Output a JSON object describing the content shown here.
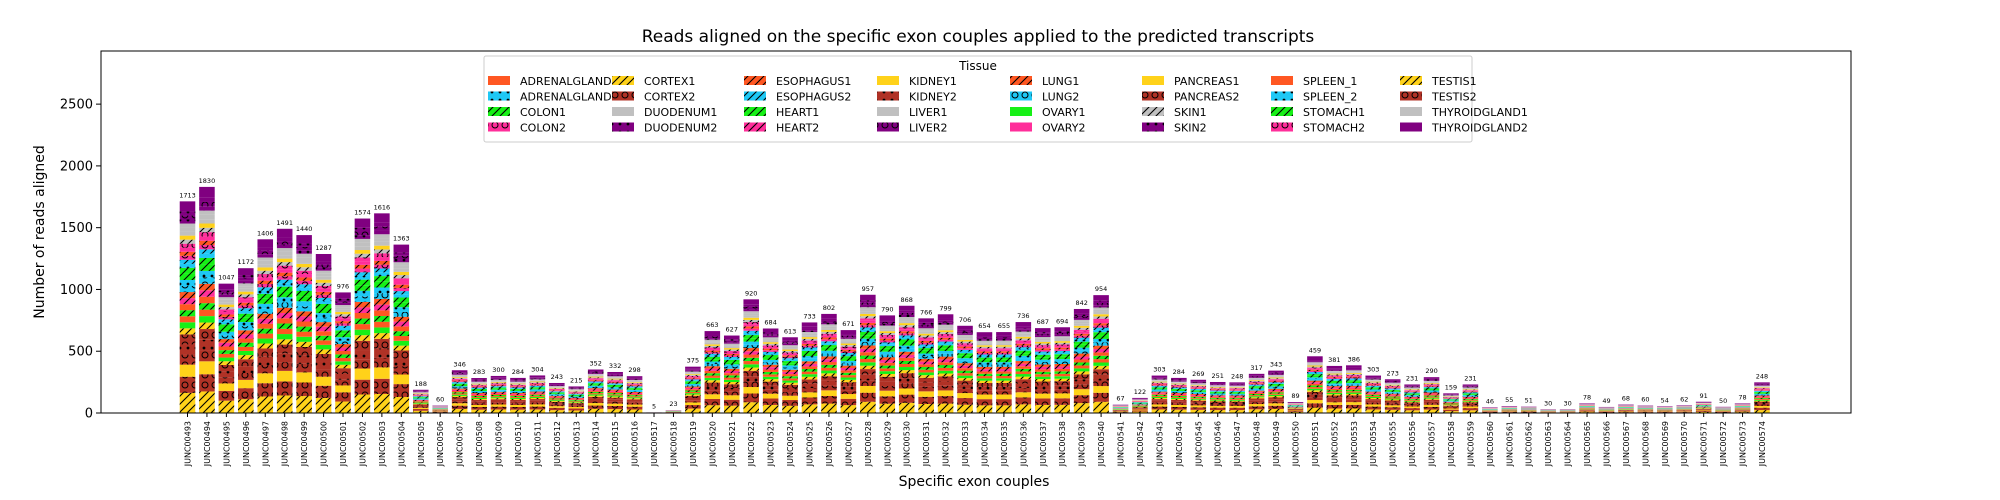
{
  "chart_data": {
    "type": "bar",
    "stacked": true,
    "title": "Reads aligned on the specific exon couples applied to the predicted transcripts",
    "xlabel": "Specific exon couples",
    "ylabel": "Number of reads aligned",
    "ylim": [
      0,
      2930
    ],
    "yticks": [
      0,
      500,
      1000,
      1500,
      2000,
      2500
    ],
    "grid": false,
    "legend": {
      "title": "Tissue",
      "position": "top-center",
      "ncol": 8
    },
    "categories": [
      "JUNC00493",
      "JUNC00494",
      "JUNC00495",
      "JUNC00496",
      "JUNC00497",
      "JUNC00498",
      "JUNC00499",
      "JUNC00500",
      "JUNC00501",
      "JUNC00502",
      "JUNC00503",
      "JUNC00504",
      "JUNC00505",
      "JUNC00506",
      "JUNC00507",
      "JUNC00508",
      "JUNC00509",
      "JUNC00510",
      "JUNC00511",
      "JUNC00512",
      "JUNC00513",
      "JUNC00514",
      "JUNC00515",
      "JUNC00516",
      "JUNC00517",
      "JUNC00518",
      "JUNC00519",
      "JUNC00520",
      "JUNC00521",
      "JUNC00522",
      "JUNC00523",
      "JUNC00524",
      "JUNC00525",
      "JUNC00526",
      "JUNC00527",
      "JUNC00528",
      "JUNC00529",
      "JUNC00530",
      "JUNC00531",
      "JUNC00532",
      "JUNC00533",
      "JUNC00534",
      "JUNC00535",
      "JUNC00536",
      "JUNC00537",
      "JUNC00538",
      "JUNC00539",
      "JUNC00540",
      "JUNC00541",
      "JUNC00542",
      "JUNC00543",
      "JUNC00544",
      "JUNC00545",
      "JUNC00546",
      "JUNC00547",
      "JUNC00548",
      "JUNC00549",
      "JUNC00550",
      "JUNC00551",
      "JUNC00552",
      "JUNC00553",
      "JUNC00554",
      "JUNC00555",
      "JUNC00556",
      "JUNC00557",
      "JUNC00558",
      "JUNC00559",
      "JUNC00560",
      "JUNC00561",
      "JUNC00562",
      "JUNC00563",
      "JUNC00564",
      "JUNC00565",
      "JUNC00566",
      "JUNC00567",
      "JUNC00568",
      "JUNC00569",
      "JUNC00570",
      "JUNC00571",
      "JUNC00572",
      "JUNC00573",
      "JUNC00574"
    ],
    "totals": [
      1713,
      1830,
      1047,
      1172,
      1406,
      1491,
      1440,
      1287,
      976,
      1574,
      1616,
      1363,
      188,
      60,
      346,
      283,
      300,
      284,
      304,
      243,
      215,
      352,
      332,
      298,
      5,
      23,
      375,
      663,
      627,
      920,
      684,
      613,
      733,
      802,
      671,
      957,
      790,
      868,
      766,
      799,
      706,
      654,
      655,
      736,
      687,
      694,
      842,
      954,
      67,
      122,
      303,
      284,
      269,
      251,
      248,
      317,
      343,
      89,
      459,
      381,
      386,
      303,
      273,
      231,
      290,
      159,
      231,
      46,
      55,
      51,
      30,
      30,
      78,
      49,
      68,
      60,
      54,
      62,
      91,
      50,
      78,
      248
    ],
    "series": [
      {
        "name": "ADRENALGLAND1",
        "color": "#ff5722",
        "hatch": ""
      },
      {
        "name": "ADRENALGLAND2",
        "color": "#1ec8f5",
        "hatch": "dots"
      },
      {
        "name": "COLON1",
        "color": "#16f016",
        "hatch": "slash"
      },
      {
        "name": "COLON2",
        "color": "#ff2e9a",
        "hatch": "circles"
      },
      {
        "name": "CORTEX1",
        "color": "#ffd21a",
        "hatch": "slash"
      },
      {
        "name": "CORTEX2",
        "color": "#b03226",
        "hatch": "circles"
      },
      {
        "name": "DUODENUM1",
        "color": "#c0c0c0",
        "hatch": ""
      },
      {
        "name": "DUODENUM2",
        "color": "#800080",
        "hatch": "dots"
      },
      {
        "name": "ESOPHAGUS1",
        "color": "#ff5722",
        "hatch": "slash"
      },
      {
        "name": "ESOPHAGUS2",
        "color": "#1ec8f5",
        "hatch": "slash"
      },
      {
        "name": "HEART1",
        "color": "#16f016",
        "hatch": "slash"
      },
      {
        "name": "HEART2",
        "color": "#ff2e9a",
        "hatch": "slash"
      },
      {
        "name": "KIDNEY1",
        "color": "#ffd21a",
        "hatch": ""
      },
      {
        "name": "KIDNEY2",
        "color": "#b03226",
        "hatch": "dots"
      },
      {
        "name": "LIVER1",
        "color": "#c0c0c0",
        "hatch": ""
      },
      {
        "name": "LIVER2",
        "color": "#800080",
        "hatch": "circles"
      },
      {
        "name": "LUNG1",
        "color": "#ff5722",
        "hatch": "slash"
      },
      {
        "name": "LUNG2",
        "color": "#1ec8f5",
        "hatch": "circles"
      },
      {
        "name": "OVARY1",
        "color": "#16f016",
        "hatch": ""
      },
      {
        "name": "OVARY2",
        "color": "#ff2e9a",
        "hatch": ""
      },
      {
        "name": "PANCREAS1",
        "color": "#ffd21a",
        "hatch": ""
      },
      {
        "name": "PANCREAS2",
        "color": "#b03226",
        "hatch": "circles"
      },
      {
        "name": "SKIN1",
        "color": "#c0c0c0",
        "hatch": "slash"
      },
      {
        "name": "SKIN2",
        "color": "#800080",
        "hatch": "dots"
      },
      {
        "name": "SPLEEN_1",
        "color": "#ff5722",
        "hatch": ""
      },
      {
        "name": "SPLEEN_2",
        "color": "#1ec8f5",
        "hatch": "dots"
      },
      {
        "name": "STOMACH1",
        "color": "#16f016",
        "hatch": "slash"
      },
      {
        "name": "STOMACH2",
        "color": "#ff2e9a",
        "hatch": "circles"
      },
      {
        "name": "TESTIS1",
        "color": "#ffd21a",
        "hatch": "slash"
      },
      {
        "name": "TESTIS2",
        "color": "#b03226",
        "hatch": "circles"
      },
      {
        "name": "THYROIDGLAND1",
        "color": "#c0c0c0",
        "hatch": ""
      },
      {
        "name": "THYROIDGLAND2",
        "color": "#800080",
        "hatch": ""
      }
    ],
    "stack_order": [
      28,
      21,
      20,
      29,
      13,
      5,
      4,
      18,
      0,
      10,
      24,
      11,
      8,
      17,
      25,
      2,
      26,
      1,
      9,
      3,
      16,
      19,
      27,
      22,
      12,
      6,
      14,
      30,
      7,
      15,
      23,
      31
    ],
    "stack_weights": [
      0.1,
      0.08,
      0.06,
      0.05,
      0.05,
      0.05,
      0.03,
      0.03,
      0.03,
      0.03,
      0.03,
      0.03,
      0.03,
      0.03,
      0.03,
      0.03,
      0.03,
      0.02,
      0.02,
      0.02,
      0.02,
      0.02,
      0.02,
      0.02,
      0.02,
      0.02,
      0.02,
      0.02,
      0.02,
      0.02,
      0.02,
      0.05
    ]
  }
}
